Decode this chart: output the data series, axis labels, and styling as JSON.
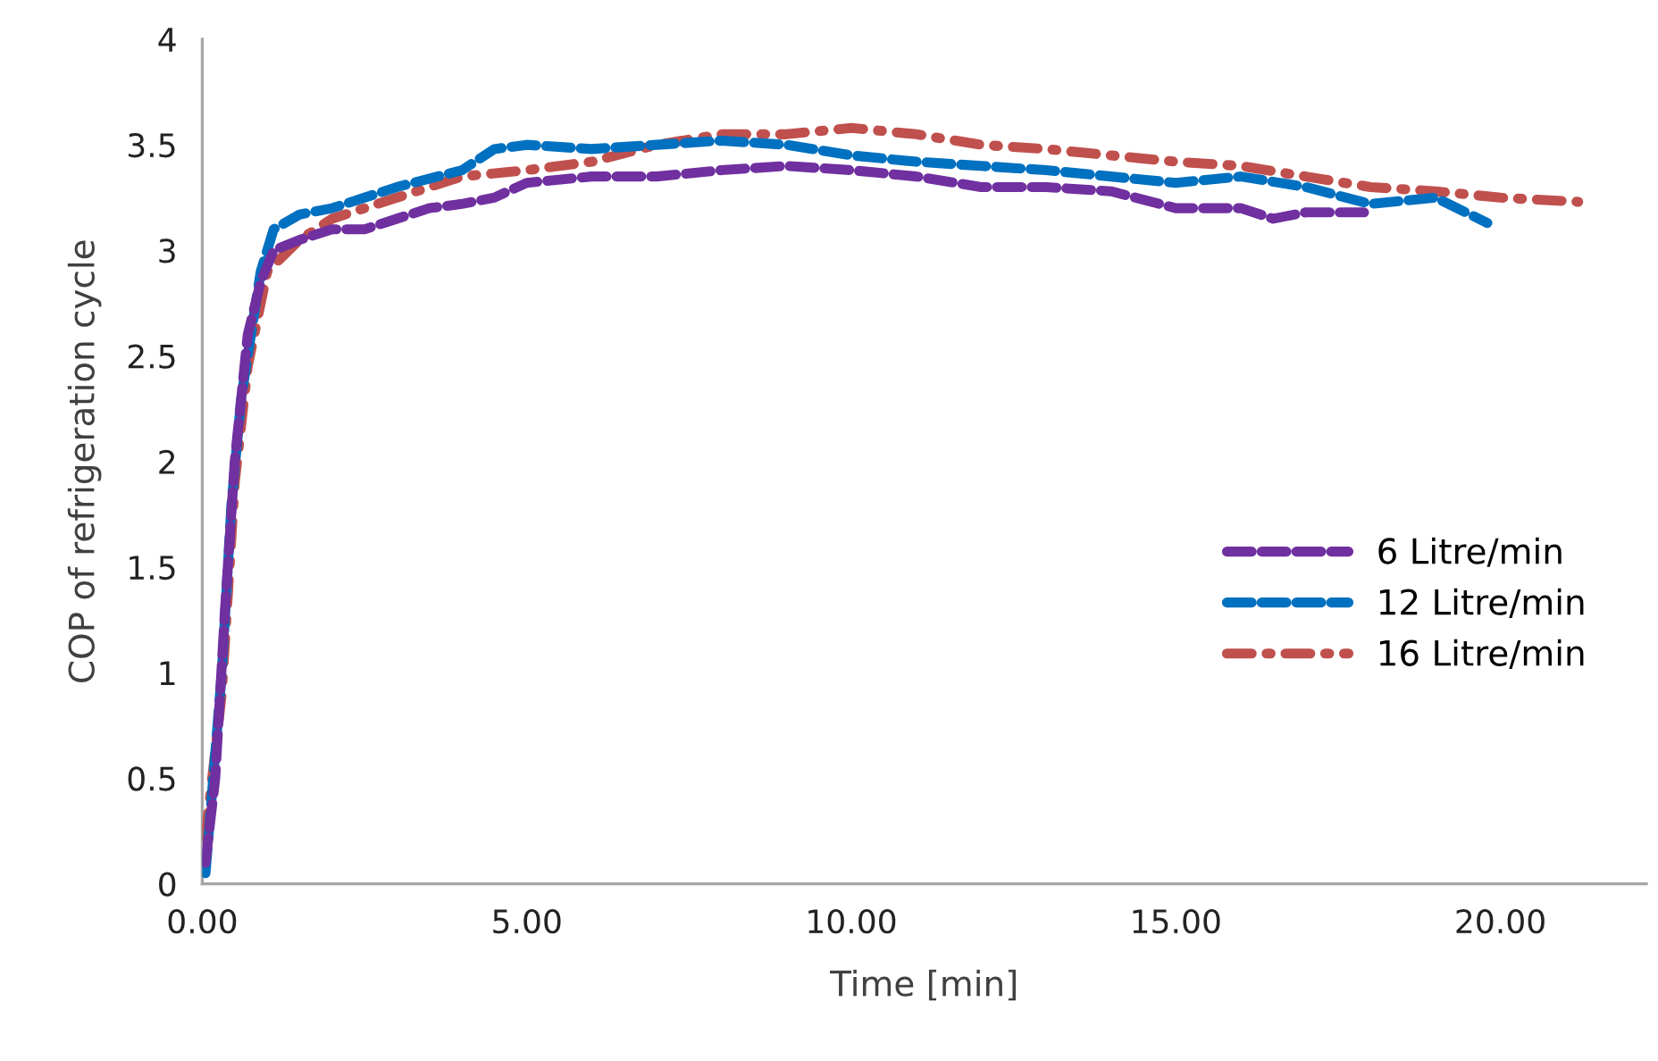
{
  "chart_data": {
    "type": "line",
    "xlabel": "Time [min]",
    "ylabel": "COP of refrigeration cycle",
    "xlim": [
      0,
      22.25
    ],
    "xticks": [
      {
        "value": 0,
        "label": "0.00"
      },
      {
        "value": 5,
        "label": "5.00"
      },
      {
        "value": 10,
        "label": "10.00"
      },
      {
        "value": 15,
        "label": "15.00"
      },
      {
        "value": 20,
        "label": "20.00"
      }
    ],
    "ylim": [
      0,
      4
    ],
    "yticks": [
      0,
      0.5,
      1,
      1.5,
      2,
      2.5,
      3,
      3.5,
      4
    ],
    "grid": false,
    "legend": "right",
    "marker": "none",
    "series": [
      {
        "name": "6 Litre/min",
        "color": "#7030a0",
        "line_style": "dashed",
        "x": [
          0.05,
          0.2,
          0.35,
          0.5,
          0.7,
          0.9,
          1.1,
          1.5,
          2.0,
          2.5,
          3.0,
          3.5,
          4.0,
          4.5,
          5.0,
          6.0,
          7.0,
          8.0,
          9.0,
          10.0,
          11.0,
          12.0,
          13.0,
          14.0,
          15.0,
          16.0,
          16.5,
          17.0,
          17.9
        ],
        "values": [
          0.1,
          0.5,
          1.3,
          2.0,
          2.6,
          2.85,
          3.0,
          3.05,
          3.1,
          3.1,
          3.15,
          3.2,
          3.22,
          3.25,
          3.32,
          3.35,
          3.35,
          3.38,
          3.4,
          3.38,
          3.35,
          3.3,
          3.3,
          3.28,
          3.2,
          3.2,
          3.15,
          3.18,
          3.18
        ]
      },
      {
        "name": "12 Litre/min",
        "color": "#0070c0",
        "line_style": "dashed",
        "x": [
          0.05,
          0.3,
          0.45,
          0.6,
          0.9,
          1.1,
          1.5,
          2.0,
          3.0,
          4.0,
          4.5,
          5.0,
          6.0,
          7.0,
          8.0,
          9.0,
          10.0,
          11.0,
          12.0,
          13.0,
          14.0,
          15.0,
          16.0,
          17.0,
          18.0,
          19.0,
          19.8
        ],
        "values": [
          0.05,
          1.0,
          1.8,
          2.3,
          2.9,
          3.1,
          3.17,
          3.2,
          3.3,
          3.38,
          3.48,
          3.5,
          3.48,
          3.5,
          3.52,
          3.5,
          3.45,
          3.42,
          3.4,
          3.38,
          3.35,
          3.32,
          3.35,
          3.3,
          3.22,
          3.25,
          3.13
        ]
      },
      {
        "name": "16 Litre/min",
        "color": "#c0504d",
        "line_style": "dotted",
        "x": [
          0.05,
          0.3,
          0.5,
          0.7,
          1.0,
          1.5,
          2.0,
          3.0,
          4.0,
          5.0,
          6.0,
          7.0,
          8.0,
          9.0,
          10.0,
          11.0,
          12.0,
          13.0,
          14.0,
          15.0,
          16.0,
          17.0,
          18.0,
          19.0,
          20.0,
          21.2
        ],
        "values": [
          0.22,
          0.9,
          1.9,
          2.45,
          2.9,
          3.05,
          3.15,
          3.25,
          3.35,
          3.38,
          3.42,
          3.5,
          3.55,
          3.55,
          3.58,
          3.55,
          3.5,
          3.48,
          3.45,
          3.42,
          3.4,
          3.35,
          3.3,
          3.28,
          3.25,
          3.23
        ]
      }
    ]
  }
}
